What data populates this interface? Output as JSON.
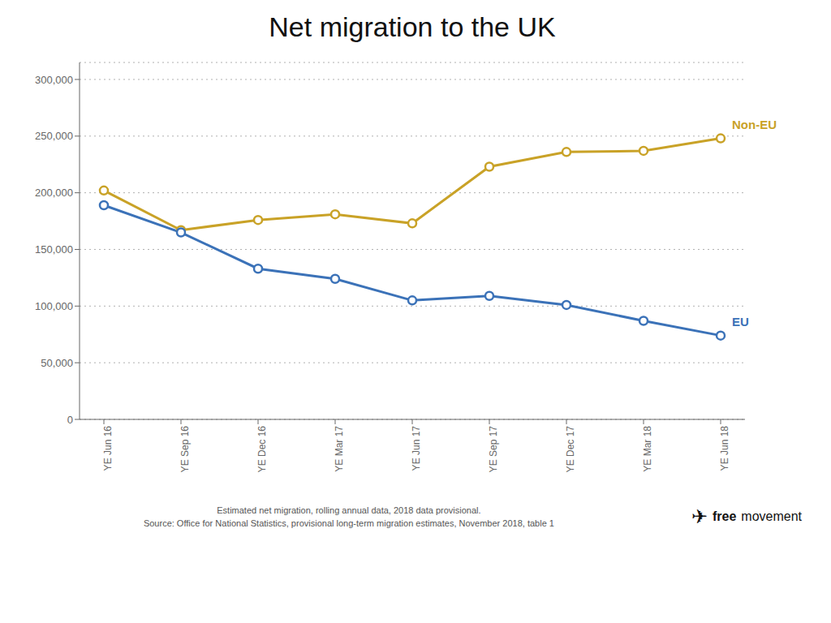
{
  "chart_data": {
    "type": "line",
    "title": "Net migration to the UK",
    "categories": [
      "YE Jun 16",
      "YE Sep 16",
      "YE Dec 16",
      "YE Mar 17",
      "YE Jun 17",
      "YE Sep 17",
      "YE Dec 17",
      "YE Mar 18",
      "YE Jun 18"
    ],
    "series": [
      {
        "name": "Non-EU",
        "color": "#C9A227",
        "marker": "circle",
        "values": [
          202000,
          167000,
          176000,
          181000,
          173000,
          223000,
          236000,
          237000,
          248000
        ]
      },
      {
        "name": "EU",
        "color": "#3B72B8",
        "marker": "circle",
        "values": [
          189000,
          165000,
          133000,
          124000,
          105000,
          109000,
          101000,
          87000,
          74000
        ]
      }
    ],
    "ylim": [
      0,
      315000
    ],
    "yticks": [
      0,
      {
        "value": 50000,
        "label": "50,000"
      },
      {
        "value": 100000,
        "label": "100,000"
      },
      {
        "value": 150000,
        "label": "150,000"
      },
      {
        "value": 200000,
        "label": "200,000"
      },
      {
        "value": 250000,
        "label": "250,000"
      },
      {
        "value": 300000,
        "label": "300,000"
      }
    ],
    "grid": true,
    "footnotes": [
      "Estimated net migration, rolling annual data, 2018 data provisional.",
      "Source: Office for National Statistics, provisional long-term migration estimates, November 2018, table 1"
    ],
    "branding": [
      "✈",
      "free",
      "movement"
    ]
  }
}
